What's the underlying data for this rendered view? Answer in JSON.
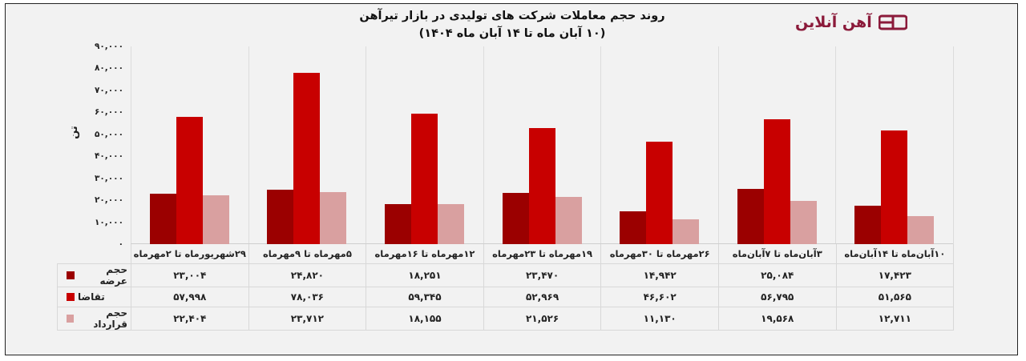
{
  "header": {
    "title_line1": "روند حجم معاملات شرکت های تولیدی در بازار تیرآهن",
    "title_line2": "(۱۰ آبان ماه تا ۱۴ آبان ماه ۱۴۰۴)",
    "logo_text": "آهن آنلاین",
    "logo_icon": "ad-logo-icon",
    "logo_color": "#8b1a3a"
  },
  "axis": {
    "ylabel": "تن",
    "ticks": [
      "۹۰,۰۰۰",
      "۸۰,۰۰۰",
      "۷۰,۰۰۰",
      "۶۰,۰۰۰",
      "۵۰,۰۰۰",
      "۴۰,۰۰۰",
      "۳۰,۰۰۰",
      "۲۰,۰۰۰",
      "۱۰,۰۰۰",
      "۰"
    ]
  },
  "table": {
    "categories": [
      "۲۹شهریورماه تا ۲مهرماه",
      "۵مهرماه تا ۹مهرماه",
      "۱۲مهرماه تا ۱۶مهرماه",
      "۱۹مهرماه تا ۲۳مهرماه",
      "۲۶مهرماه تا ۳۰مهرماه",
      "۳آبان‌ماه تا ۷آبان‌ماه",
      "۱۰آبان‌ماه تا ۱۴آبان‌ماه"
    ],
    "rows": [
      {
        "label": "حجم عرضه",
        "color": "#9b0000",
        "values": [
          "۲۳,۰۰۴",
          "۲۴,۸۲۰",
          "۱۸,۲۵۱",
          "۲۳,۴۷۰",
          "۱۴,۹۴۲",
          "۲۵,۰۸۴",
          "۱۷,۴۲۳"
        ]
      },
      {
        "label": "تقاضا",
        "color": "#c80000",
        "values": [
          "۵۷,۹۹۸",
          "۷۸,۰۳۶",
          "۵۹,۳۴۵",
          "۵۲,۹۶۹",
          "۴۶,۶۰۲",
          "۵۶,۷۹۵",
          "۵۱,۵۶۵"
        ]
      },
      {
        "label": "حجم قرارداد",
        "color": "#d9a0a0",
        "values": [
          "۲۲,۴۰۴",
          "۲۳,۷۱۲",
          "۱۸,۱۵۵",
          "۲۱,۵۲۶",
          "۱۱,۱۳۰",
          "۱۹,۵۶۸",
          "۱۲,۷۱۱"
        ]
      }
    ]
  },
  "chart_data": {
    "type": "bar",
    "title": "روند حجم معاملات شرکت های تولیدی در بازار تیرآهن (۱۰ آبان ماه تا ۱۴ آبان ماه ۱۴۰۴)",
    "xlabel": "",
    "ylabel": "تن",
    "ylim": [
      0,
      90000
    ],
    "grid": "vertical category separators",
    "legend_position": "table-left",
    "categories": [
      "۲۹شهریورماه تا ۲مهرماه",
      "۵مهرماه تا ۹مهرماه",
      "۱۲مهرماه تا ۱۶مهرماه",
      "۱۹مهرماه تا ۲۳مهرماه",
      "۲۶مهرماه تا ۳۰مهرماه",
      "۳آبان‌ماه تا ۷آبان‌ماه",
      "۱۰آبان‌ماه تا ۱۴آبان‌ماه"
    ],
    "series": [
      {
        "name": "حجم عرضه",
        "color": "#9b0000",
        "values": [
          23004,
          24820,
          18251,
          23470,
          14942,
          25084,
          17423
        ]
      },
      {
        "name": "تقاضا",
        "color": "#c80000",
        "values": [
          57998,
          78036,
          59345,
          52969,
          46602,
          56795,
          51565
        ]
      },
      {
        "name": "حجم قرارداد",
        "color": "#d9a0a0",
        "values": [
          22404,
          23712,
          18155,
          21526,
          11130,
          19568,
          12711
        ]
      }
    ]
  }
}
